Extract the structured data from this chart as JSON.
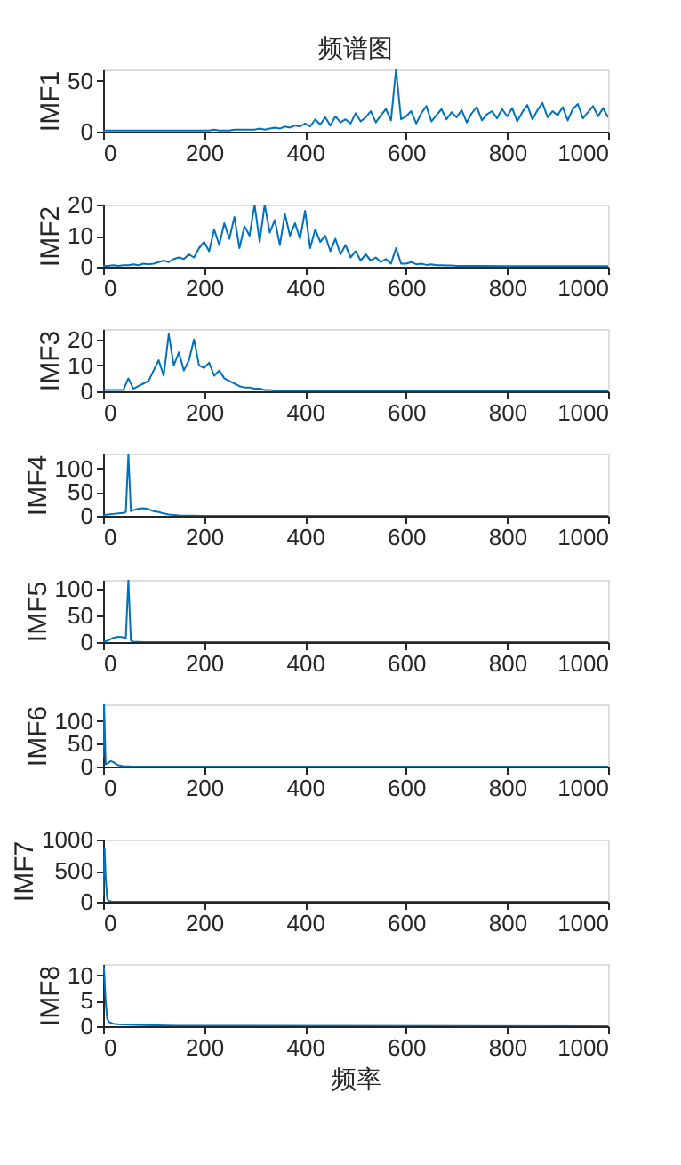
{
  "chart_data": [
    {
      "type": "line",
      "title": "频谱图",
      "ylabel": "IMF1",
      "grid": false,
      "legend": false,
      "xlim": [
        0,
        1000
      ],
      "xticks": [
        0,
        200,
        400,
        600,
        800,
        1000
      ],
      "ylim": [
        0,
        61
      ],
      "yticks": [
        0,
        50
      ],
      "x": [
        0,
        10,
        20,
        30,
        40,
        50,
        60,
        70,
        80,
        90,
        100,
        110,
        120,
        130,
        140,
        150,
        160,
        170,
        180,
        190,
        200,
        210,
        220,
        230,
        240,
        250,
        260,
        270,
        280,
        290,
        300,
        310,
        320,
        330,
        340,
        350,
        360,
        370,
        380,
        390,
        400,
        410,
        420,
        430,
        440,
        450,
        460,
        470,
        480,
        490,
        500,
        510,
        520,
        530,
        540,
        550,
        560,
        570,
        580,
        590,
        600,
        610,
        620,
        630,
        640,
        650,
        660,
        670,
        680,
        690,
        700,
        710,
        720,
        730,
        740,
        750,
        760,
        770,
        780,
        790,
        800,
        810,
        820,
        830,
        840,
        850,
        860,
        870,
        880,
        890,
        900,
        910,
        920,
        930,
        940,
        950,
        960,
        970,
        980,
        990,
        1000
      ],
      "series": [
        {
          "color": "#0072bd",
          "values": [
            1,
            1,
            1,
            1,
            1,
            1,
            1,
            1,
            1,
            1,
            1,
            1,
            1,
            1,
            1,
            1,
            1,
            1,
            1,
            1,
            1,
            1,
            2,
            1,
            1,
            1,
            2,
            2,
            2,
            2,
            2,
            3,
            2,
            3,
            4,
            3,
            5,
            4,
            6,
            5,
            8,
            5,
            12,
            7,
            14,
            6,
            15,
            9,
            12,
            8,
            18,
            10,
            14,
            20,
            9,
            16,
            22,
            11,
            61,
            12,
            15,
            20,
            8,
            18,
            25,
            10,
            16,
            22,
            12,
            19,
            14,
            21,
            9,
            18,
            24,
            11,
            17,
            20,
            13,
            22,
            15,
            23,
            10,
            19,
            26,
            12,
            21,
            28,
            14,
            20,
            16,
            24,
            11,
            22,
            27,
            13,
            19,
            25,
            15,
            23,
            14
          ]
        }
      ]
    },
    {
      "type": "line",
      "ylabel": "IMF2",
      "grid": false,
      "legend": false,
      "xlim": [
        0,
        1000
      ],
      "xticks": [
        0,
        200,
        400,
        600,
        800,
        1000
      ],
      "ylim": [
        0,
        20
      ],
      "yticks": [
        0,
        10,
        20
      ],
      "x": [
        0,
        10,
        20,
        30,
        40,
        50,
        60,
        70,
        80,
        90,
        100,
        110,
        120,
        130,
        140,
        150,
        160,
        170,
        180,
        190,
        200,
        210,
        220,
        230,
        240,
        250,
        260,
        270,
        280,
        290,
        300,
        310,
        320,
        330,
        340,
        350,
        360,
        370,
        380,
        390,
        400,
        410,
        420,
        430,
        440,
        450,
        460,
        470,
        480,
        490,
        500,
        510,
        520,
        530,
        540,
        550,
        560,
        570,
        580,
        590,
        600,
        610,
        620,
        630,
        640,
        650,
        660,
        670,
        680,
        690,
        700,
        750,
        800,
        900,
        1000
      ],
      "series": [
        {
          "color": "#0072bd",
          "values": [
            0.3,
            0.3,
            0.5,
            0.3,
            0.5,
            0.5,
            0.8,
            0.5,
            1,
            0.8,
            1,
            1.5,
            2,
            1.5,
            2.5,
            3,
            2.5,
            4,
            3,
            6,
            8,
            5,
            12,
            7,
            14,
            9,
            16,
            6,
            13,
            10,
            20,
            8,
            20,
            11,
            15,
            7,
            17,
            10,
            14,
            9,
            18,
            6,
            12,
            8,
            10,
            5,
            9,
            4,
            7,
            3,
            5,
            2,
            4,
            2,
            3,
            1.5,
            2.5,
            1,
            6,
            1,
            1,
            1.5,
            0.8,
            1,
            0.6,
            0.8,
            0.5,
            0.5,
            0.4,
            0.4,
            0.3,
            0.3,
            0.2,
            0.2,
            0.2
          ]
        }
      ]
    },
    {
      "type": "line",
      "ylabel": "IMF3",
      "grid": false,
      "legend": false,
      "xlim": [
        0,
        1000
      ],
      "xticks": [
        0,
        200,
        400,
        600,
        800,
        1000
      ],
      "ylim": [
        0,
        24
      ],
      "yticks": [
        0,
        10,
        20
      ],
      "x": [
        0,
        10,
        20,
        30,
        40,
        50,
        60,
        70,
        80,
        90,
        100,
        110,
        120,
        130,
        140,
        150,
        160,
        170,
        180,
        190,
        200,
        210,
        220,
        230,
        240,
        250,
        260,
        270,
        280,
        290,
        300,
        310,
        320,
        330,
        340,
        350,
        400,
        600,
        800,
        1000
      ],
      "series": [
        {
          "color": "#0072bd",
          "values": [
            0.5,
            0.5,
            0.5,
            0.5,
            0.5,
            5,
            1,
            2,
            3,
            4,
            8,
            12,
            6,
            22,
            10,
            15,
            8,
            12,
            20,
            10,
            9,
            11,
            6,
            8,
            5,
            4,
            3,
            2,
            1.5,
            1.5,
            1,
            1,
            0.5,
            0.5,
            0.3,
            0.2,
            0.1,
            0.1,
            0.1,
            0.1
          ]
        }
      ]
    },
    {
      "type": "line",
      "ylabel": "IMF4",
      "grid": false,
      "legend": false,
      "xlim": [
        0,
        1000
      ],
      "xticks": [
        0,
        200,
        400,
        600,
        800,
        1000
      ],
      "ylim": [
        0,
        132
      ],
      "yticks": [
        0,
        50,
        100
      ],
      "x": [
        0,
        10,
        20,
        30,
        40,
        45,
        50,
        55,
        60,
        70,
        80,
        90,
        100,
        110,
        120,
        130,
        150,
        200,
        300,
        500,
        1000
      ],
      "series": [
        {
          "color": "#0072bd",
          "values": [
            2,
            3,
            4,
            5,
            6,
            8,
            130,
            10,
            12,
            15,
            16,
            14,
            10,
            8,
            5,
            3,
            1,
            0,
            0,
            0,
            0
          ]
        }
      ]
    },
    {
      "type": "line",
      "ylabel": "IMF5",
      "grid": false,
      "legend": false,
      "xlim": [
        0,
        1000
      ],
      "xticks": [
        0,
        200,
        400,
        600,
        800,
        1000
      ],
      "ylim": [
        0,
        117
      ],
      "yticks": [
        0,
        50,
        100
      ],
      "x": [
        0,
        10,
        20,
        30,
        40,
        45,
        50,
        55,
        60,
        80,
        100,
        200,
        500,
        1000
      ],
      "series": [
        {
          "color": "#0072bd",
          "values": [
            1,
            3,
            8,
            10,
            9,
            8,
            117,
            3,
            1,
            0,
            0,
            0,
            0,
            0
          ]
        }
      ]
    },
    {
      "type": "line",
      "ylabel": "IMF6",
      "grid": false,
      "legend": false,
      "xlim": [
        0,
        1000
      ],
      "xticks": [
        0,
        200,
        400,
        600,
        800,
        1000
      ],
      "ylim": [
        0,
        136
      ],
      "yticks": [
        0,
        50,
        100
      ],
      "x": [
        0,
        2,
        5,
        10,
        15,
        20,
        25,
        30,
        40,
        60,
        100,
        300,
        1000
      ],
      "series": [
        {
          "color": "#0072bd",
          "values": [
            20,
            136,
            5,
            8,
            12,
            10,
            6,
            3,
            1,
            0,
            0,
            0,
            0
          ]
        }
      ]
    },
    {
      "type": "line",
      "ylabel": "IMF7",
      "grid": false,
      "legend": false,
      "xlim": [
        0,
        1000
      ],
      "xticks": [
        0,
        200,
        400,
        600,
        800,
        1000
      ],
      "ylim": [
        0,
        1000
      ],
      "yticks": [
        0,
        500,
        1000
      ],
      "x": [
        0,
        3,
        5,
        8,
        12,
        20,
        50,
        200,
        1000
      ],
      "series": [
        {
          "color": "#0072bd",
          "values": [
            100,
            850,
            400,
            50,
            10,
            0,
            0,
            0,
            0
          ]
        }
      ]
    },
    {
      "type": "line",
      "xlabel": "频率",
      "ylabel": "IMF8",
      "grid": false,
      "legend": false,
      "xlim": [
        0,
        1000
      ],
      "xticks": [
        0,
        200,
        400,
        600,
        800,
        1000
      ],
      "ylim": [
        0,
        12.2
      ],
      "yticks": [
        0,
        5,
        10
      ],
      "x": [
        0,
        2,
        5,
        8,
        12,
        20,
        30,
        50,
        80,
        150,
        300,
        1000
      ],
      "series": [
        {
          "color": "#0072bd",
          "values": [
            12,
            11,
            5,
            1.5,
            0.8,
            0.5,
            0.4,
            0.3,
            0.2,
            0.1,
            0.1,
            0
          ]
        }
      ]
    }
  ]
}
